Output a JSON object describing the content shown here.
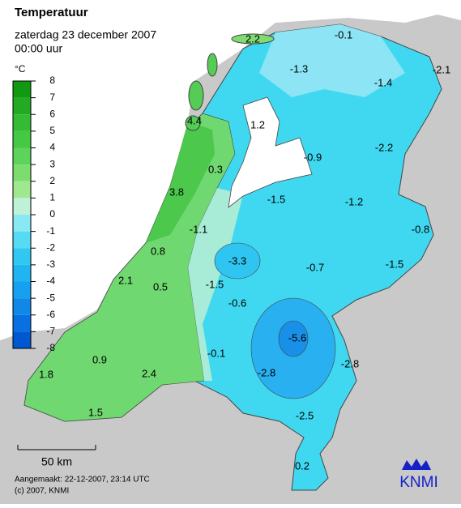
{
  "title": "Temperatuur",
  "subtitle": "zaterdag 23 december 2007",
  "time": "00:00 uur",
  "legend": {
    "unit": "°C",
    "ticks": [
      8,
      7,
      6,
      5,
      4,
      3,
      2,
      1,
      0,
      -1,
      -2,
      -3,
      -4,
      -5,
      -6,
      -7,
      -8
    ],
    "colors": [
      "#119911",
      "#22aa22",
      "#33bb33",
      "#44c944",
      "#5cd45c",
      "#7ddc6e",
      "#a0e890",
      "#bff0d8",
      "#88e8f4",
      "#55dcf4",
      "#30c8f0",
      "#20b4f0",
      "#18a0f0",
      "#1088e8",
      "#0870e0",
      "#0058d0"
    ]
  },
  "stations": [
    2.2,
    -0.1,
    -1.3,
    -1.4,
    -2.1,
    4.4,
    1.2,
    -2.2,
    -0.9,
    0.3,
    3.8,
    -1.5,
    -1.2,
    -0.8,
    -1.1,
    0.8,
    -3.3,
    -0.7,
    -1.5,
    2.1,
    0.5,
    -1.5,
    -0.6,
    -5.6,
    -0.1,
    -2.8,
    0.9,
    2.4,
    1.8,
    -2.8,
    -2.5,
    1.5,
    0.2
  ],
  "scale": "50 km",
  "created": "Aangemaakt: 22-12-2007, 23:14 UTC",
  "copyright": "(c) 2007, KNMI",
  "logo": "KNMI"
}
